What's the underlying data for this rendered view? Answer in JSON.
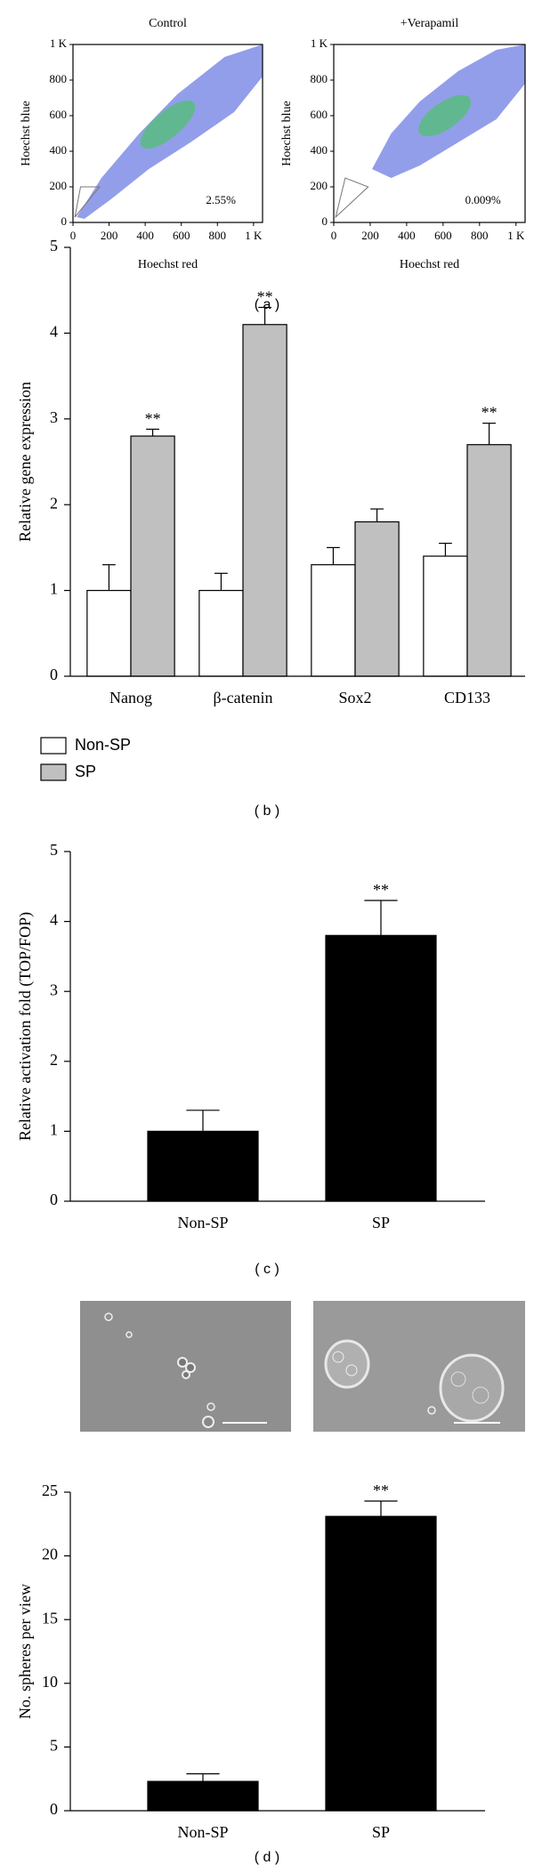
{
  "panel_labels": [
    "( a )",
    "( b )",
    "( c )",
    "( d )"
  ],
  "chart_data": [
    {
      "type": "density",
      "title": "Control",
      "xlabel": "Hoechst red",
      "ylabel": "Hoechst blue",
      "xlim": [
        0,
        1050
      ],
      "ylim": [
        0,
        1000
      ],
      "xticks": [
        0,
        200,
        400,
        600,
        800,
        {
          "value": 1000,
          "label": "1 K"
        }
      ],
      "yticks": [
        0,
        200,
        400,
        600,
        800,
        {
          "value": 1000,
          "label": "1 K"
        }
      ],
      "annotation": "2.55%"
    },
    {
      "type": "density",
      "title": "+Verapamil",
      "xlabel": "Hoechst red",
      "ylabel": "Hoechst blue",
      "xlim": [
        0,
        1050
      ],
      "ylim": [
        0,
        1000
      ],
      "xticks": [
        0,
        200,
        400,
        600,
        800,
        {
          "value": 1000,
          "label": "1 K"
        }
      ],
      "yticks": [
        0,
        200,
        400,
        600,
        800,
        {
          "value": 1000,
          "label": "1 K"
        }
      ],
      "annotation": "0.009%"
    },
    {
      "type": "bar",
      "ylabel": "Relative gene expression",
      "categories": [
        "Nanog",
        "β-catenin",
        "Sox2",
        "CD133"
      ],
      "series": [
        {
          "name": "Non-SP",
          "color": "#ffffff",
          "values": [
            1,
            1,
            1.3,
            1.4
          ],
          "errors": [
            0.3,
            0.2,
            0.2,
            0.15
          ],
          "annotations": [
            null,
            null,
            null,
            null
          ]
        },
        {
          "name": "SP",
          "color": "#c0c0c0",
          "values": [
            2.8,
            4.1,
            1.8,
            2.7
          ],
          "errors": [
            0.08,
            0.2,
            0.15,
            0.25
          ],
          "annotations": [
            "**",
            "**",
            null,
            "**"
          ]
        }
      ],
      "ylim": [
        0,
        5
      ],
      "yticks": [
        0,
        1,
        2,
        3,
        4,
        5
      ],
      "legend": "below"
    },
    {
      "type": "bar",
      "ylabel": "Relative activation fold (TOP/FOP)",
      "categories": [
        "Non-SP",
        "SP"
      ],
      "series": [
        {
          "color": "#000000",
          "values": [
            1,
            3.8
          ],
          "errors": [
            0.3,
            0.5
          ],
          "annotations": [
            null,
            "**"
          ]
        }
      ],
      "ylim": [
        0,
        5
      ],
      "yticks": [
        0,
        1,
        2,
        3,
        4,
        5
      ]
    },
    {
      "type": "bar",
      "ylabel": "No. spheres per view",
      "categories": [
        "Non-SP",
        "SP"
      ],
      "series": [
        {
          "color": "#000000",
          "values": [
            2.3,
            23.1
          ],
          "errors": [
            0.6,
            1.2
          ],
          "annotations": [
            null,
            "**"
          ]
        }
      ],
      "ylim": [
        0,
        25
      ],
      "yticks": [
        0,
        5,
        10,
        15,
        20,
        25
      ]
    }
  ]
}
